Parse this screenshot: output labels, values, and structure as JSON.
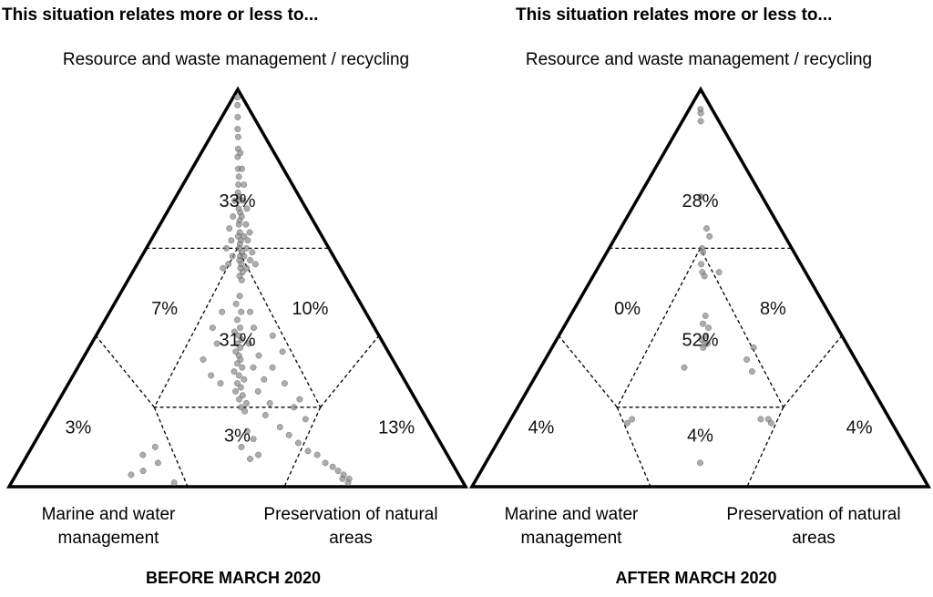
{
  "panels": [
    {
      "heading": "This situation relates more or less to...",
      "top_label": "Resource and waste management / recycling",
      "bottom_left_label": "Marine and water management",
      "bottom_right_label": "Preservation of natural areas",
      "subtitle": "BEFORE MARCH 2020"
    },
    {
      "heading": "This situation relates more or less to...",
      "top_label": "Resource and waste management / recycling",
      "bottom_left_label": "Marine and water management",
      "bottom_right_label": "Preservation of natural areas",
      "subtitle": "AFTER MARCH 2020"
    }
  ],
  "chart_data": [
    {
      "type": "ternary",
      "title": "BEFORE MARCH 2020",
      "axes": {
        "top": "Resource and waste management / recycling",
        "bottom_left": "Marine and water management",
        "bottom_right": "Preservation of natural areas"
      },
      "regions": [
        {
          "region": "top",
          "label": "33%",
          "value": 33
        },
        {
          "region": "upper-left",
          "label": "7%",
          "value": 7
        },
        {
          "region": "upper-right",
          "label": "10%",
          "value": 10
        },
        {
          "region": "center",
          "label": "31%",
          "value": 31
        },
        {
          "region": "bottom-left",
          "label": "3%",
          "value": 3
        },
        {
          "region": "bottom-center",
          "label": "3%",
          "value": 3
        },
        {
          "region": "bottom-right",
          "label": "13%",
          "value": 13
        }
      ],
      "points": [
        [
          0.98,
          0.01
        ],
        [
          0.96,
          0.02
        ],
        [
          0.93,
          0.02
        ],
        [
          0.9,
          0.01
        ],
        [
          0.88,
          0.03
        ],
        [
          0.85,
          0.02
        ],
        [
          0.83,
          0.01
        ],
        [
          0.8,
          0.02
        ],
        [
          0.78,
          0.03
        ],
        [
          0.76,
          0.02
        ],
        [
          0.74,
          0.01
        ],
        [
          0.73,
          0.03
        ],
        [
          0.72,
          0.02
        ],
        [
          0.7,
          0.02
        ],
        [
          0.69,
          0.04
        ],
        [
          0.67,
          0.03
        ],
        [
          0.66,
          0.02
        ],
        [
          0.64,
          0.03
        ],
        [
          0.63,
          0.01
        ],
        [
          0.62,
          0.04
        ],
        [
          0.61,
          0.03
        ],
        [
          0.6,
          0.02
        ],
        [
          0.59,
          0.05
        ],
        [
          0.58,
          0.03
        ],
        [
          0.57,
          0.02
        ],
        [
          0.56,
          0.04
        ],
        [
          0.55,
          0.03
        ],
        [
          0.54,
          0.05
        ],
        [
          0.53,
          0.02
        ],
        [
          0.52,
          0.04
        ],
        [
          0.84,
          0.08
        ],
        [
          0.8,
          0.1
        ],
        [
          0.76,
          0.12
        ],
        [
          0.72,
          0.09
        ],
        [
          0.7,
          0.14
        ],
        [
          0.68,
          0.06
        ],
        [
          0.66,
          0.11
        ],
        [
          0.64,
          0.15
        ],
        [
          0.63,
          0.08
        ],
        [
          0.62,
          0.12
        ],
        [
          0.6,
          0.1
        ],
        [
          0.59,
          0.16
        ],
        [
          0.58,
          0.07
        ],
        [
          0.57,
          0.13
        ],
        [
          0.56,
          0.18
        ],
        [
          0.55,
          0.09
        ],
        [
          0.72,
          -0.04
        ],
        [
          0.68,
          -0.06
        ],
        [
          0.65,
          -0.1
        ],
        [
          0.62,
          -0.07
        ],
        [
          0.6,
          -0.12
        ],
        [
          0.58,
          -0.05
        ],
        [
          0.56,
          -0.09
        ],
        [
          0.55,
          -0.14
        ],
        [
          0.48,
          0.02
        ],
        [
          0.46,
          -0.01
        ],
        [
          0.44,
          0.03
        ],
        [
          0.42,
          0.0
        ],
        [
          0.4,
          0.02
        ],
        [
          0.39,
          -0.02
        ],
        [
          0.38,
          0.01
        ],
        [
          0.37,
          0.03
        ],
        [
          0.36,
          0.0
        ],
        [
          0.35,
          0.02
        ],
        [
          0.34,
          -0.01
        ],
        [
          0.33,
          0.01
        ],
        [
          0.32,
          0.02
        ],
        [
          0.31,
          0.0
        ],
        [
          0.3,
          0.03
        ],
        [
          0.29,
          -0.02
        ],
        [
          0.28,
          0.01
        ],
        [
          0.27,
          0.04
        ],
        [
          0.26,
          0.0
        ],
        [
          0.25,
          0.02
        ],
        [
          0.24,
          -0.01
        ],
        [
          0.23,
          0.03
        ],
        [
          0.22,
          0.01
        ],
        [
          0.21,
          0.05
        ],
        [
          0.2,
          0.02
        ],
        [
          0.19,
          0.04
        ],
        [
          0.44,
          0.1
        ],
        [
          0.4,
          0.12
        ],
        [
          0.36,
          0.08
        ],
        [
          0.33,
          0.14
        ],
        [
          0.3,
          0.1
        ],
        [
          0.27,
          0.16
        ],
        [
          0.24,
          0.12
        ],
        [
          0.21,
          0.18
        ],
        [
          0.18,
          0.15
        ],
        [
          0.15,
          0.22
        ],
        [
          0.13,
          0.26
        ],
        [
          0.11,
          0.3
        ],
        [
          0.09,
          0.34
        ],
        [
          0.08,
          0.38
        ],
        [
          0.06,
          0.41
        ],
        [
          0.05,
          0.44
        ],
        [
          0.04,
          0.46
        ],
        [
          0.03,
          0.48
        ],
        [
          0.02,
          0.5
        ],
        [
          0.02,
          0.47
        ],
        [
          0.01,
          0.49
        ],
        [
          0.44,
          -0.12
        ],
        [
          0.4,
          -0.18
        ],
        [
          0.36,
          -0.14
        ],
        [
          0.32,
          -0.22
        ],
        [
          0.28,
          -0.16
        ],
        [
          0.26,
          -0.1
        ],
        [
          0.38,
          0.25
        ],
        [
          0.34,
          0.3
        ],
        [
          0.3,
          0.22
        ],
        [
          0.26,
          0.28
        ],
        [
          0.22,
          0.35
        ],
        [
          0.2,
          0.31
        ],
        [
          0.17,
          0.36
        ],
        [
          0.1,
          -0.4
        ],
        [
          0.08,
          -0.45
        ],
        [
          0.06,
          -0.37
        ],
        [
          0.04,
          -0.43
        ],
        [
          0.03,
          -0.48
        ],
        [
          0.01,
          -0.28
        ],
        [
          0.14,
          0.05
        ],
        [
          0.12,
          0.08
        ],
        [
          0.1,
          0.02
        ],
        [
          0.08,
          0.1
        ],
        [
          0.07,
          0.06
        ]
      ]
    },
    {
      "type": "ternary",
      "title": "AFTER MARCH 2020",
      "axes": {
        "top": "Resource and waste management / recycling",
        "bottom_left": "Marine and water management",
        "bottom_right": "Preservation of natural areas"
      },
      "regions": [
        {
          "region": "top",
          "label": "28%",
          "value": 28
        },
        {
          "region": "upper-left",
          "label": "0%",
          "value": 0
        },
        {
          "region": "upper-right",
          "label": "8%",
          "value": 8
        },
        {
          "region": "center",
          "label": "52%",
          "value": 52
        },
        {
          "region": "bottom-left",
          "label": "4%",
          "value": 4
        },
        {
          "region": "bottom-center",
          "label": "4%",
          "value": 4
        },
        {
          "region": "bottom-right",
          "label": "4%",
          "value": 4
        }
      ],
      "points": [
        [
          0.95,
          0.02
        ],
        [
          0.94,
          0.04
        ],
        [
          0.92,
          0.03
        ],
        [
          0.73,
          0.01
        ],
        [
          0.65,
          0.08
        ],
        [
          0.63,
          0.11
        ],
        [
          0.6,
          0.02
        ],
        [
          0.59,
          0.03
        ],
        [
          0.56,
          0.01
        ],
        [
          0.54,
          0.02
        ],
        [
          0.53,
          0.04
        ],
        [
          0.43,
          0.04
        ],
        [
          0.41,
          0.02
        ],
        [
          0.4,
          0.06
        ],
        [
          0.38,
          0.04
        ],
        [
          0.37,
          0.01
        ],
        [
          0.36,
          0.05
        ],
        [
          0.36,
          0.03
        ],
        [
          0.35,
          0.02
        ],
        [
          0.54,
          0.18
        ],
        [
          0.35,
          0.36
        ],
        [
          0.32,
          0.3
        ],
        [
          0.29,
          0.32
        ],
        [
          0.3,
          -0.1
        ],
        [
          0.17,
          0.32
        ],
        [
          0.17,
          -0.36
        ],
        [
          0.16,
          -0.38
        ],
        [
          0.17,
          0.36
        ],
        [
          0.16,
          0.37
        ],
        [
          0.06,
          0.0
        ]
      ]
    }
  ],
  "colors": {
    "triangle_stroke": "#000000",
    "divider_stroke": "#000000",
    "point_fill": "#8a8a8a",
    "text": "#111111"
  }
}
